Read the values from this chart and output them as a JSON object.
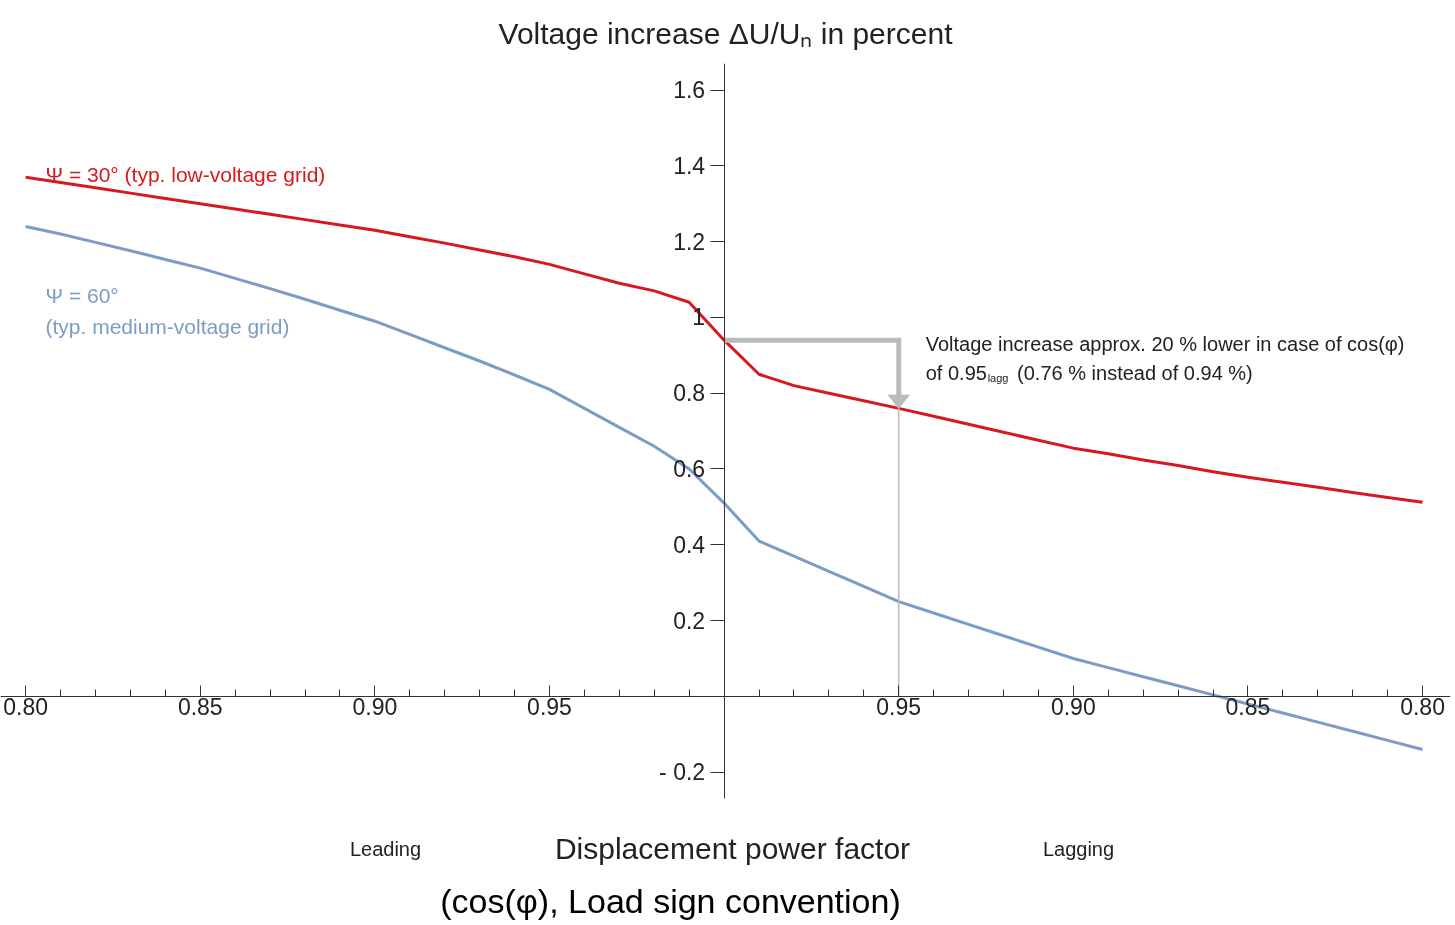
{
  "chart_data": {
    "type": "line",
    "title": "Voltage increase ΔU/Uₙ in percent",
    "xlabel": "Displacement power factor",
    "categories": [
      "0.80",
      null,
      null,
      null,
      null,
      "0.85",
      null,
      null,
      null,
      null,
      "0.90",
      null,
      null,
      null,
      null,
      "0.95",
      null,
      null,
      null,
      null,
      null,
      null,
      null,
      null,
      null,
      "0.95",
      null,
      null,
      null,
      null,
      "0.90",
      null,
      null,
      null,
      null,
      "0.85",
      null,
      null,
      null,
      null,
      "0.80"
    ],
    "series": [
      {
        "name": "Ψ = 30° (typ. low-voltage grid)",
        "color": "#d7191f",
        "values": [
          1.37,
          1.356,
          1.342,
          1.328,
          1.314,
          1.3,
          1.286,
          1.272,
          1.258,
          1.244,
          1.23,
          1.213,
          1.196,
          1.178,
          1.16,
          1.14,
          1.115,
          1.09,
          1.07,
          1.04,
          0.94,
          0.85,
          0.82,
          0.8,
          0.78,
          0.76,
          0.739,
          0.718,
          0.697,
          0.676,
          0.655,
          0.64,
          0.624,
          0.609,
          0.593,
          0.578,
          0.565,
          0.552,
          0.538,
          0.525,
          0.512
        ]
      },
      {
        "name": "Ψ = 60°\n(typ. medium-voltage grid)",
        "color": "#7c9cc4",
        "values": [
          1.24,
          1.22,
          1.198,
          1.176,
          1.153,
          1.13,
          1.103,
          1.076,
          1.048,
          1.019,
          0.99,
          0.955,
          0.92,
          0.885,
          0.848,
          0.81,
          0.76,
          0.71,
          0.66,
          0.6,
          0.51,
          0.41,
          0.37,
          0.33,
          0.29,
          0.25,
          0.22,
          0.19,
          0.16,
          0.13,
          0.1,
          0.076,
          0.052,
          0.028,
          0.004,
          -0.02,
          -0.044,
          -0.068,
          -0.092,
          -0.116,
          -0.14
        ]
      }
    ],
    "ylim": [
      -0.27,
      1.67
    ],
    "yticks": [
      {
        "value": -0.2,
        "label": "- 0.2"
      },
      0.2,
      0.4,
      0.6,
      0.8,
      1,
      1.2,
      1.4,
      1.6
    ],
    "annotations": [
      "Voltage increase approx. 20 % lower in case of cos(φ)\nof 0.95$_{lagg}$ (0.76 % instead of 0.94 %)",
      "Leading",
      "Lagging",
      "(cos(φ), Load sign convention)"
    ],
    "grid": false,
    "legend": false,
    "marker": "none",
    "line_style": "solid"
  }
}
